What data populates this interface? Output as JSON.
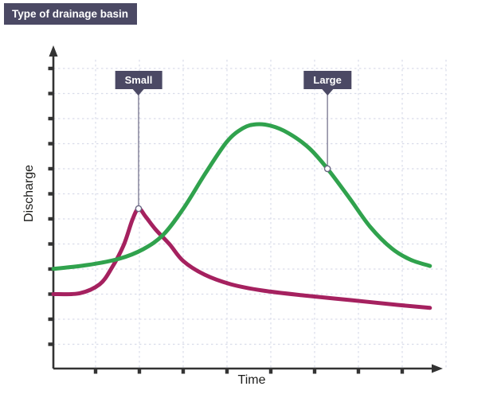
{
  "header": {
    "title": "Type of drainage basin"
  },
  "axes": {
    "x_label": "Time",
    "y_label": "Discharge"
  },
  "colors": {
    "background": "#ffffff",
    "badge_bg": "#4b4964",
    "badge_text": "#ffffff",
    "axis": "#333333",
    "gridline": "#d9dcea",
    "connector": "#6b6884",
    "marker_fill": "#ffffff",
    "small_series": "#a5215f",
    "large_series": "#30a24d",
    "axis_label_text": "#1d1d1b"
  },
  "chart_data": {
    "type": "line",
    "title": "Type of drainage basin",
    "xlabel": "Time",
    "ylabel": "Discharge",
    "x_range": [
      0,
      100
    ],
    "y_range": [
      0,
      100
    ],
    "axes_note": "Axes are qualitative (no numeric tick labels); point values are normalized 0-100 estimates read from the plot",
    "grid": {
      "style": "dashed",
      "vertical_lines": 9,
      "horizontal_lines": 12
    },
    "legend_position": "callout flags above curves",
    "series": [
      {
        "name": "Small",
        "color": "#a5215f",
        "callout_anchor": [
          21.7,
          53.3
        ],
        "points": [
          [
            0,
            24.8
          ],
          [
            6.7,
            25.1
          ],
          [
            11.8,
            28.1
          ],
          [
            14.8,
            33.4
          ],
          [
            17.9,
            41.1
          ],
          [
            20.1,
            49.5
          ],
          [
            21.7,
            53.3
          ],
          [
            23.5,
            50.6
          ],
          [
            26,
            46.4
          ],
          [
            29.6,
            41.4
          ],
          [
            33.1,
            35.8
          ],
          [
            38.5,
            31.3
          ],
          [
            45.2,
            28.1
          ],
          [
            53.3,
            26
          ],
          [
            63.5,
            24.4
          ],
          [
            75.7,
            22.8
          ],
          [
            87.8,
            21.2
          ],
          [
            95.9,
            20.2
          ]
        ]
      },
      {
        "name": "Large",
        "color": "#30a24d",
        "callout_anchor": [
          69.8,
          66.6
        ],
        "points": [
          [
            0,
            33.2
          ],
          [
            8.7,
            34.5
          ],
          [
            16.8,
            36.6
          ],
          [
            22.9,
            39.8
          ],
          [
            28,
            44.6
          ],
          [
            33.1,
            53.3
          ],
          [
            38.7,
            65
          ],
          [
            44.2,
            75.6
          ],
          [
            48.3,
            80.1
          ],
          [
            51.7,
            81.4
          ],
          [
            55.4,
            80.9
          ],
          [
            59.8,
            78.5
          ],
          [
            65.1,
            73.5
          ],
          [
            69.8,
            66.6
          ],
          [
            75.3,
            57
          ],
          [
            80.7,
            47.2
          ],
          [
            86.2,
            40
          ],
          [
            90.9,
            36.3
          ],
          [
            95.9,
            34.2
          ]
        ]
      }
    ]
  }
}
